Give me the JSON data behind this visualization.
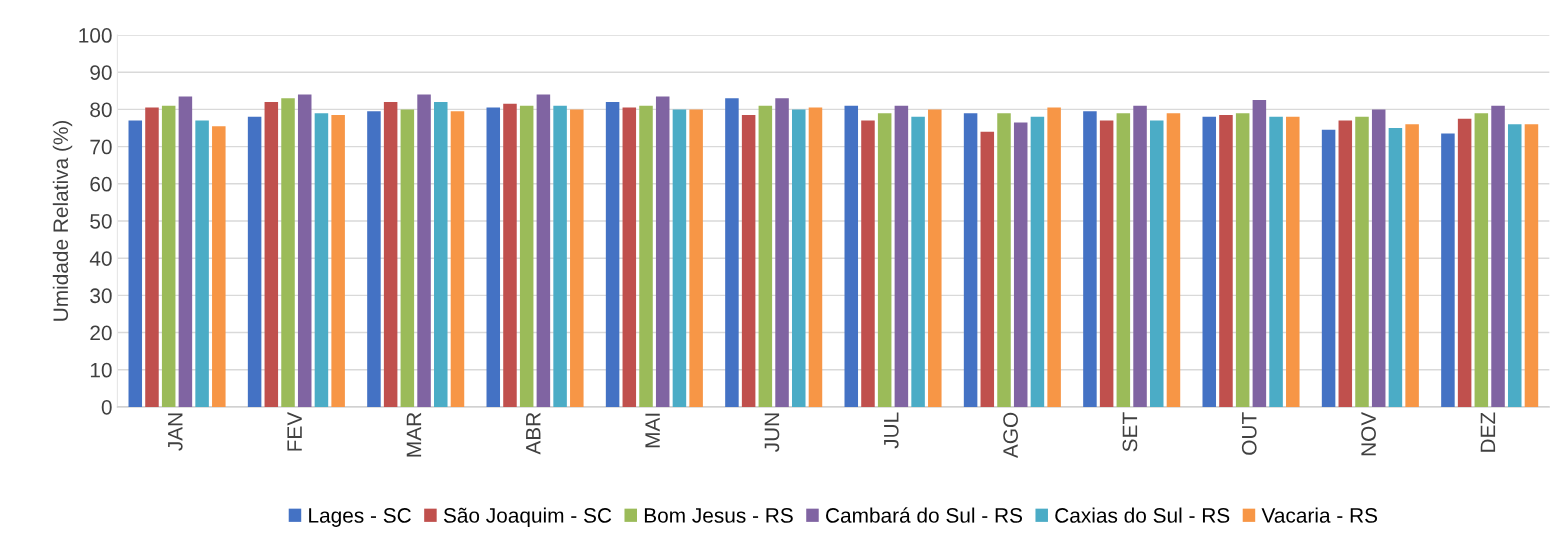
{
  "chart_data": {
    "type": "bar",
    "ylabel": "Umidade Relativa (%)",
    "categories": [
      "JAN",
      "FEV",
      "MAR",
      "ABR",
      "MAI",
      "JUN",
      "JUL",
      "AGO",
      "SET",
      "OUT",
      "NOV",
      "DEZ"
    ],
    "series": [
      {
        "name": "Lages - SC",
        "color": "#4472c4",
        "values": [
          77,
          78,
          79.5,
          80.5,
          82,
          83,
          81,
          79,
          79.5,
          78,
          74.5,
          73.5
        ]
      },
      {
        "name": "São Joaquim - SC",
        "color": "#c0504d",
        "values": [
          80.5,
          82,
          82,
          81.5,
          80.5,
          78.5,
          77,
          74,
          77,
          78.5,
          77,
          77.5
        ]
      },
      {
        "name": "Bom Jesus - RS",
        "color": "#9bbb59",
        "values": [
          81,
          83,
          80,
          81,
          81,
          81,
          79,
          79,
          79,
          79,
          78,
          79
        ]
      },
      {
        "name": "Cambará do Sul - RS",
        "color": "#8064a2",
        "values": [
          83.5,
          84,
          84,
          84,
          83.5,
          83,
          81,
          76.5,
          81,
          82.5,
          80,
          81
        ]
      },
      {
        "name": "Caxias do Sul - RS",
        "color": "#4bacc6",
        "values": [
          77,
          79,
          82,
          81,
          80,
          80,
          78,
          78,
          77,
          78,
          75,
          76
        ]
      },
      {
        "name": "Vacaria - RS",
        "color": "#f79646",
        "values": [
          75.5,
          78.5,
          79.5,
          80,
          80,
          80.5,
          80,
          80.5,
          79,
          78,
          76,
          76
        ]
      }
    ],
    "ylim": [
      0,
      100
    ],
    "yticks": [
      0,
      10,
      20,
      30,
      40,
      50,
      60,
      70,
      80,
      90,
      100
    ],
    "grid": "y",
    "legend": "bottom"
  }
}
